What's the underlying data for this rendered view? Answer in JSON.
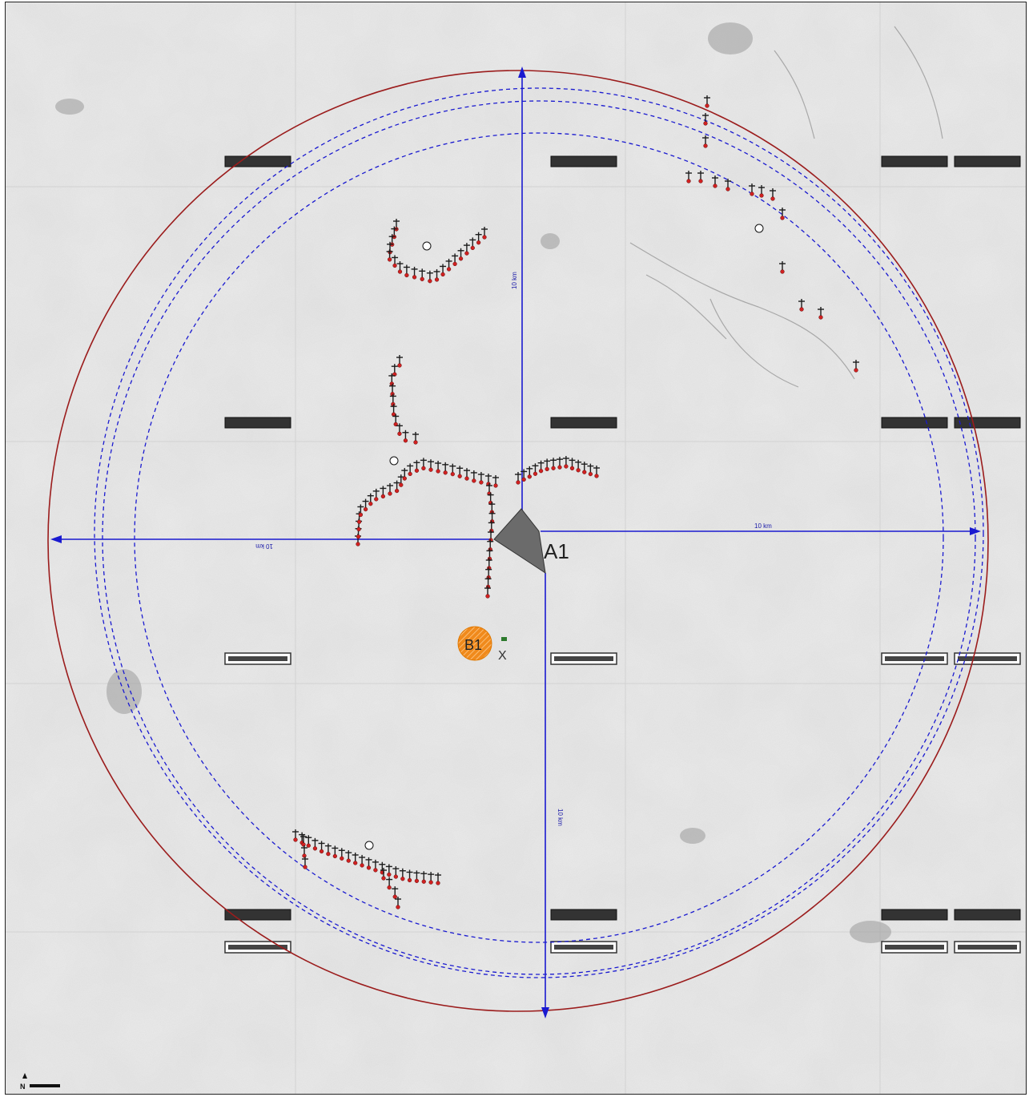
{
  "site": {
    "id": "A1",
    "fill_color": "#6b6b6b"
  },
  "point_b": {
    "id": "B1",
    "fill_color": "#f08a1c",
    "marker": "X"
  },
  "radius_arrows": {
    "north_label": "10 km",
    "east_label": "10 km",
    "south_label": "10 km",
    "west_label": "10 km",
    "color": "#1a1ad0"
  },
  "circles": {
    "outer_color": "#9b1c1c",
    "dashed_color": "#1a1ad0"
  },
  "turbine_groups": [
    {
      "label_icon": "circle-marker",
      "style": "red-dot-turbines"
    },
    {
      "label_icon": "circle-marker",
      "style": "red-dot-turbines"
    },
    {
      "label_icon": "circle-marker",
      "style": "red-dot-turbines"
    },
    {
      "label_icon": "circle-marker",
      "style": "red-dot-turbines"
    },
    {
      "label_icon": "circle-marker",
      "style": "red-dot-turbines"
    }
  ],
  "north_arrow": {
    "label": "N"
  },
  "basemap": {
    "style": "greyscale-topographic",
    "tile_labels_redacted": true
  }
}
